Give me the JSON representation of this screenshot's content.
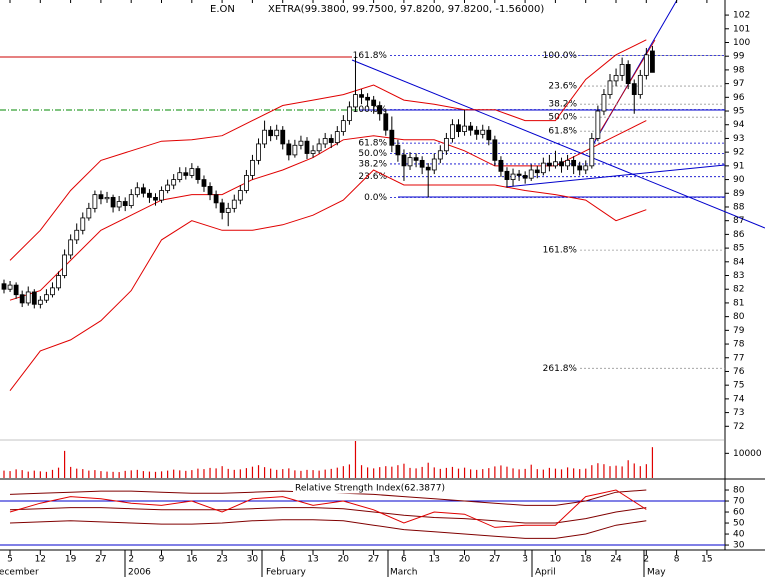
{
  "chart_data": [
    {
      "type": "candlestick",
      "title": "E.ON",
      "subtitle": "XETRA(99.3800, 99.7500, 97.8200, 97.8200, -1.56000)",
      "up_color": "#ffffff",
      "down_color": "#000000",
      "ylim": [
        71,
        103.1
      ],
      "yticks": [
        72,
        73,
        74,
        75,
        76,
        77,
        78,
        79,
        80,
        81,
        82,
        83,
        84,
        85,
        86,
        87,
        88,
        89,
        90,
        91,
        92,
        93,
        94,
        95,
        96,
        97,
        98,
        99,
        100,
        101,
        102
      ],
      "ohlc": [
        [
          82.4,
          82.7,
          81.7,
          82.0
        ],
        [
          82.0,
          82.6,
          81.8,
          82.3
        ],
        [
          82.3,
          82.5,
          81.3,
          81.6
        ],
        [
          81.6,
          81.9,
          80.7,
          81.0
        ],
        [
          81.0,
          82.2,
          80.8,
          81.8
        ],
        [
          81.8,
          82.0,
          80.6,
          80.9
        ],
        [
          80.9,
          81.5,
          80.6,
          81.2
        ],
        [
          81.2,
          82.0,
          81.0,
          81.6
        ],
        [
          81.6,
          82.5,
          81.4,
          82.1
        ],
        [
          82.1,
          83.3,
          81.9,
          83.0
        ],
        [
          83.0,
          84.9,
          82.8,
          84.5
        ],
        [
          84.5,
          86.0,
          84.2,
          85.6
        ],
        [
          85.6,
          86.8,
          85.3,
          86.3
        ],
        [
          86.3,
          87.6,
          86.0,
          87.2
        ],
        [
          87.2,
          88.3,
          87.0,
          87.9
        ],
        [
          87.9,
          89.2,
          87.6,
          88.9
        ],
        [
          88.9,
          89.2,
          88.2,
          88.6
        ],
        [
          88.6,
          89.1,
          88.3,
          88.7
        ],
        [
          88.7,
          88.9,
          87.6,
          88.0
        ],
        [
          88.0,
          88.8,
          87.7,
          88.4
        ],
        [
          88.4,
          88.7,
          87.7,
          88.1
        ],
        [
          88.1,
          89.3,
          87.9,
          88.9
        ],
        [
          88.9,
          89.8,
          88.7,
          89.4
        ],
        [
          89.4,
          89.7,
          88.7,
          89.0
        ],
        [
          89.0,
          89.3,
          88.3,
          88.7
        ],
        [
          88.7,
          89.0,
          88.1,
          88.5
        ],
        [
          88.5,
          89.5,
          88.3,
          89.2
        ],
        [
          89.2,
          90.0,
          89.0,
          89.6
        ],
        [
          89.6,
          90.4,
          89.3,
          90.0
        ],
        [
          90.0,
          90.9,
          89.8,
          90.5
        ],
        [
          90.5,
          90.9,
          90.0,
          90.3
        ],
        [
          90.3,
          91.2,
          90.1,
          90.8
        ],
        [
          90.8,
          91.0,
          89.7,
          90.0
        ],
        [
          90.0,
          90.3,
          89.1,
          89.5
        ],
        [
          89.5,
          89.8,
          88.5,
          88.9
        ],
        [
          88.9,
          89.2,
          87.9,
          88.3
        ],
        [
          88.3,
          88.6,
          87.1,
          87.6
        ],
        [
          87.6,
          88.3,
          86.6,
          87.9
        ],
        [
          87.9,
          88.9,
          87.6,
          88.5
        ],
        [
          88.5,
          89.6,
          88.2,
          89.2
        ],
        [
          89.2,
          90.7,
          89.0,
          90.3
        ],
        [
          90.3,
          91.8,
          90.0,
          91.4
        ],
        [
          91.4,
          93.0,
          91.1,
          92.6
        ],
        [
          92.6,
          94.3,
          92.3,
          93.6
        ],
        [
          93.6,
          93.9,
          92.8,
          93.2
        ],
        [
          93.2,
          94.0,
          92.9,
          93.6
        ],
        [
          93.6,
          93.9,
          92.2,
          92.6
        ],
        [
          92.6,
          92.9,
          91.4,
          91.8
        ],
        [
          91.8,
          92.9,
          91.6,
          92.5
        ],
        [
          92.5,
          93.2,
          92.2,
          92.8
        ],
        [
          92.8,
          93.1,
          91.5,
          91.9
        ],
        [
          91.9,
          92.5,
          91.6,
          92.1
        ],
        [
          92.1,
          93.0,
          91.9,
          92.6
        ],
        [
          92.6,
          93.4,
          92.3,
          93.0
        ],
        [
          93.0,
          93.3,
          92.3,
          92.7
        ],
        [
          92.7,
          93.9,
          92.5,
          93.5
        ],
        [
          93.5,
          94.7,
          93.2,
          94.3
        ],
        [
          94.3,
          95.7,
          94.0,
          95.3
        ],
        [
          95.3,
          99.0,
          95.0,
          96.2
        ],
        [
          96.2,
          96.6,
          95.5,
          96.0
        ],
        [
          96.0,
          96.3,
          95.3,
          95.8
        ],
        [
          95.8,
          96.1,
          94.8,
          95.4
        ],
        [
          95.4,
          95.7,
          94.3,
          94.8
        ],
        [
          94.8,
          95.1,
          93.2,
          93.6
        ],
        [
          93.6,
          94.6,
          92.0,
          92.5
        ],
        [
          92.5,
          92.9,
          91.3,
          91.8
        ],
        [
          91.8,
          92.2,
          89.9,
          91.0
        ],
        [
          91.0,
          92.0,
          90.7,
          91.6
        ],
        [
          91.6,
          91.9,
          90.9,
          91.4
        ],
        [
          91.4,
          91.7,
          90.4,
          90.9
        ],
        [
          90.9,
          91.2,
          88.7,
          90.7
        ],
        [
          90.7,
          91.9,
          90.4,
          91.5
        ],
        [
          91.5,
          92.5,
          91.2,
          92.1
        ],
        [
          92.1,
          93.4,
          91.8,
          93.0
        ],
        [
          93.0,
          94.4,
          92.7,
          94.0
        ],
        [
          94.0,
          94.4,
          93.1,
          93.5
        ],
        [
          93.5,
          95.1,
          93.2,
          93.9
        ],
        [
          93.9,
          94.2,
          93.2,
          93.6
        ],
        [
          93.6,
          93.9,
          92.9,
          93.3
        ],
        [
          93.3,
          94.0,
          93.0,
          93.6
        ],
        [
          93.6,
          93.9,
          92.5,
          92.9
        ],
        [
          92.9,
          93.2,
          91.0,
          91.4
        ],
        [
          91.4,
          91.7,
          90.2,
          90.6
        ],
        [
          90.6,
          90.9,
          89.4,
          90.0
        ],
        [
          90.0,
          90.8,
          89.5,
          90.4
        ],
        [
          90.4,
          90.7,
          89.9,
          90.3
        ],
        [
          90.3,
          90.6,
          89.7,
          90.1
        ],
        [
          90.1,
          91.1,
          89.9,
          90.7
        ],
        [
          90.7,
          91.0,
          90.1,
          90.5
        ],
        [
          90.5,
          91.6,
          90.3,
          91.2
        ],
        [
          91.2,
          91.8,
          90.6,
          91.0
        ],
        [
          91.0,
          92.1,
          90.8,
          91.3
        ],
        [
          91.3,
          91.6,
          90.5,
          91.0
        ],
        [
          91.0,
          91.8,
          90.7,
          91.4
        ],
        [
          91.4,
          91.7,
          90.4,
          91.0
        ],
        [
          91.0,
          91.3,
          90.3,
          90.7
        ],
        [
          90.7,
          91.4,
          90.4,
          91.0
        ],
        [
          91.0,
          93.4,
          90.8,
          93.0
        ],
        [
          93.0,
          95.4,
          92.8,
          95.0
        ],
        [
          95.0,
          96.6,
          94.7,
          96.2
        ],
        [
          96.2,
          97.7,
          95.9,
          97.2
        ],
        [
          97.2,
          98.1,
          96.8,
          97.6
        ],
        [
          97.6,
          98.9,
          97.2,
          98.4
        ],
        [
          98.4,
          98.7,
          96.6,
          97.0
        ],
        [
          97.0,
          97.3,
          94.8,
          96.2
        ],
        [
          96.2,
          98.0,
          95.9,
          97.6
        ],
        [
          97.6,
          99.6,
          97.3,
          99.1
        ],
        [
          99.38,
          99.75,
          97.82,
          97.82
        ]
      ],
      "series": [
        {
          "color": "#e00000",
          "values": [
            84.1,
            86.3,
            89.2,
            91.4,
            92.1,
            92.8,
            92.9,
            93.2,
            94.3,
            95.4,
            95.8,
            96.2,
            96.9,
            95.8,
            95.5,
            95.1,
            95.1,
            94.3,
            94.3,
            97.3,
            99.1,
            100.2,
            null,
            null
          ]
        },
        {
          "color": "#e00000",
          "values": [
            81.2,
            81.9,
            84.1,
            86.3,
            87.4,
            88.5,
            88.9,
            88.9,
            90,
            90.7,
            91.6,
            92.9,
            93.2,
            92.9,
            92.9,
            92.1,
            91,
            91,
            91,
            92.1,
            93.2,
            94.3,
            null,
            null
          ]
        },
        {
          "color": "#e00000",
          "values": [
            74.6,
            77.5,
            78.3,
            79.7,
            81.9,
            85.6,
            87,
            86.3,
            86.3,
            86.7,
            87.4,
            88.5,
            90.7,
            89.6,
            89.6,
            89.6,
            89.6,
            89.2,
            88.9,
            88.5,
            87,
            87.8,
            null,
            null
          ]
        }
      ],
      "fib_levels": [
        {
          "label": "161.8%",
          "value": 99.06
        },
        {
          "label": "100.0%",
          "value": 95.1
        },
        {
          "label": "61.8%",
          "value": 92.66
        },
        {
          "label": "50.0%",
          "value": 91.9
        },
        {
          "label": "38.2%",
          "value": 91.14
        },
        {
          "label": "23.6%",
          "value": 90.21
        },
        {
          "label": "0.0%",
          "value": 88.7
        }
      ],
      "fib_color": "#0000cc",
      "fib_levels_right": [
        {
          "label": "100.0%",
          "value": 99.06
        },
        {
          "label": "23.6%",
          "value": 96.82
        },
        {
          "label": "38.2%",
          "value": 95.5
        },
        {
          "label": "50.0%",
          "value": 94.55
        },
        {
          "label": "61.8%",
          "value": 93.53
        },
        {
          "label": "161.8%",
          "value": 84.85
        },
        {
          "label": "261.8%",
          "value": 76.23
        }
      ],
      "fib_right_color": "#999999"
    },
    {
      "type": "bar",
      "color": "#e00000",
      "ylim": [
        0,
        15000
      ],
      "yticks": [
        10000
      ],
      "values": [
        3000,
        2800,
        3500,
        3200,
        2600,
        3000,
        2700,
        2500,
        3300,
        4200,
        11000,
        4500,
        3800,
        3600,
        3000,
        3200,
        2800,
        2600,
        2500,
        2400,
        2900,
        3100,
        3300,
        2800,
        2600,
        2500,
        2700,
        3000,
        3400,
        3100,
        2900,
        3200,
        3800,
        3600,
        4100,
        3900,
        4800,
        3700,
        3300,
        3500,
        4000,
        4600,
        5200,
        4400,
        3800,
        3300,
        3600,
        3900,
        3100,
        2900,
        3300,
        3200,
        3000,
        3400,
        3700,
        4200,
        4800,
        5500,
        15000,
        5200,
        4300,
        3900,
        4400,
        4800,
        4600,
        5200,
        5800,
        4100,
        3900,
        4500,
        6200,
        4300,
        3700,
        4100,
        4500,
        3800,
        4200,
        3500,
        3300,
        3600,
        4000,
        4700,
        5100,
        4600,
        3900,
        3500,
        3700,
        5400,
        3600,
        3400,
        4100,
        3800,
        3500,
        4300,
        3900,
        3600,
        3800,
        5200,
        6000,
        5600,
        4800,
        5000,
        4700,
        7200,
        5900,
        4800,
        5600,
        12500
      ]
    },
    {
      "type": "line",
      "title": "Relative Strength Index(62.3877)",
      "ylim": [
        25.5,
        88.2
      ],
      "yticks": [
        30,
        40,
        50,
        60,
        70,
        80
      ],
      "levels": [
        70,
        30
      ],
      "level_color": "#0000cc",
      "series": [
        {
          "color": "#800000",
          "values": [
            76,
            77,
            78,
            79,
            79,
            78,
            77,
            77,
            78,
            79,
            78,
            77,
            76,
            74,
            72,
            70,
            68,
            66,
            66,
            70,
            78,
            80,
            null,
            null
          ]
        },
        {
          "color": "#800000",
          "values": [
            62,
            63,
            64,
            64,
            63,
            62,
            62,
            62,
            63,
            64,
            64,
            63,
            60,
            57,
            55,
            54,
            52,
            50,
            50,
            54,
            60,
            64,
            null,
            null
          ]
        },
        {
          "color": "#800000",
          "values": [
            50,
            51,
            52,
            51,
            50,
            49,
            49,
            50,
            52,
            53,
            53,
            52,
            48,
            44,
            42,
            40,
            38,
            36,
            36,
            40,
            48,
            52,
            null,
            null
          ]
        },
        {
          "color": "#e00000",
          "values": [
            60,
            68,
            74,
            72,
            68,
            66,
            70,
            60,
            72,
            74,
            66,
            70,
            62,
            50,
            60,
            58,
            46,
            48,
            48,
            74,
            80,
            62.39,
            null,
            null
          ]
        }
      ],
      "categories": [
        "5",
        "12",
        "19",
        "27",
        "2",
        "9",
        "16",
        "23",
        "30",
        "6",
        "13",
        "20",
        "27",
        "6",
        "13",
        "20",
        "27",
        "3",
        "10",
        "18",
        "24",
        "2",
        "8",
        "15"
      ],
      "months": [
        "December",
        "2006",
        "February",
        "March",
        "April",
        "May"
      ]
    }
  ]
}
